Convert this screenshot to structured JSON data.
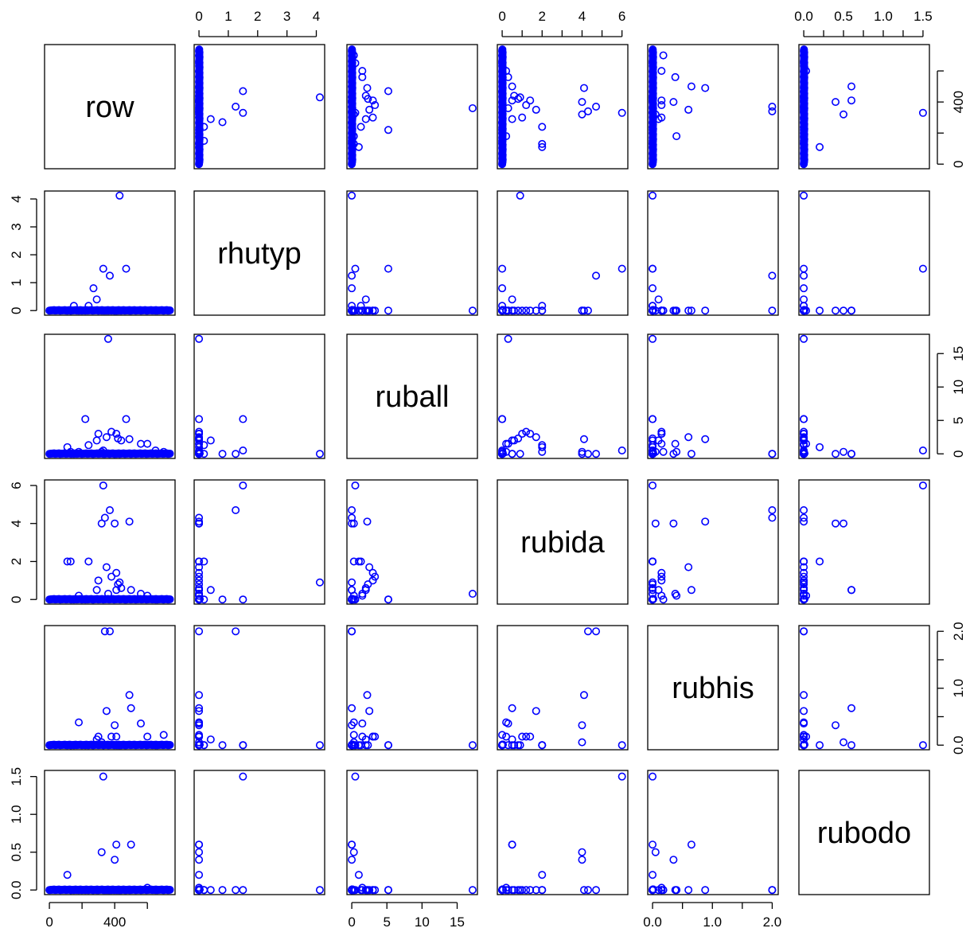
{
  "chart_data": {
    "type": "scatter",
    "layout": "pairs-matrix",
    "variables": [
      "row",
      "rhutyp",
      "ruball",
      "rubida",
      "rubhis",
      "rubodo"
    ],
    "ranges": {
      "row": [
        0,
        740
      ],
      "rhutyp": [
        0,
        4.12
      ],
      "ruball": [
        0,
        17.2
      ],
      "rubida": [
        0,
        6.05
      ],
      "rubhis": [
        0,
        2.02
      ],
      "rubodo": [
        0,
        1.52
      ]
    },
    "axis_ticks": {
      "top": {
        "rhutyp": [
          {
            "v": 0,
            "label": "0"
          },
          {
            "v": 1,
            "label": "1"
          },
          {
            "v": 2,
            "label": "2"
          },
          {
            "v": 3,
            "label": "3"
          },
          {
            "v": 4,
            "label": "4"
          }
        ],
        "rubida": [
          {
            "v": 0,
            "label": "0"
          },
          {
            "v": 1,
            "label": ""
          },
          {
            "v": 2,
            "label": "2"
          },
          {
            "v": 3,
            "label": ""
          },
          {
            "v": 4,
            "label": "4"
          },
          {
            "v": 5,
            "label": ""
          },
          {
            "v": 6,
            "label": "6"
          }
        ],
        "rubodo": [
          {
            "v": 0,
            "label": "0.0"
          },
          {
            "v": 0.25,
            "label": ""
          },
          {
            "v": 0.5,
            "label": "0.5"
          },
          {
            "v": 0.75,
            "label": ""
          },
          {
            "v": 1.0,
            "label": "1.0"
          },
          {
            "v": 1.25,
            "label": ""
          },
          {
            "v": 1.5,
            "label": "1.5"
          }
        ]
      },
      "bottom": {
        "row": [
          {
            "v": 0,
            "label": "0"
          },
          {
            "v": 200,
            "label": ""
          },
          {
            "v": 400,
            "label": "400"
          },
          {
            "v": 600,
            "label": ""
          }
        ],
        "ruball": [
          {
            "v": 0,
            "label": "0"
          },
          {
            "v": 5,
            "label": "5"
          },
          {
            "v": 10,
            "label": "10"
          },
          {
            "v": 15,
            "label": "15"
          }
        ],
        "rubhis": [
          {
            "v": 0,
            "label": "0.0"
          },
          {
            "v": 0.5,
            "label": ""
          },
          {
            "v": 1.0,
            "label": "1.0"
          },
          {
            "v": 1.5,
            "label": ""
          },
          {
            "v": 2.0,
            "label": "2.0"
          }
        ]
      },
      "left": {
        "rhutyp": [
          {
            "v": 0,
            "label": "0"
          },
          {
            "v": 1,
            "label": "1"
          },
          {
            "v": 2,
            "label": "2"
          },
          {
            "v": 3,
            "label": "3"
          },
          {
            "v": 4,
            "label": "4"
          }
        ],
        "rubida": [
          {
            "v": 0,
            "label": "0"
          },
          {
            "v": 2,
            "label": "2"
          },
          {
            "v": 4,
            "label": "4"
          },
          {
            "v": 6,
            "label": "6"
          }
        ],
        "rubodo": [
          {
            "v": 0,
            "label": "0.0"
          },
          {
            "v": 0.5,
            "label": "0.5"
          },
          {
            "v": 1.0,
            "label": "1.0"
          },
          {
            "v": 1.5,
            "label": "1.5"
          }
        ]
      },
      "right": {
        "row": [
          {
            "v": 0,
            "label": "0"
          },
          {
            "v": 200,
            "label": ""
          },
          {
            "v": 400,
            "label": "400"
          },
          {
            "v": 600,
            "label": ""
          }
        ],
        "ruball": [
          {
            "v": 0,
            "label": "0"
          },
          {
            "v": 5,
            "label": "5"
          },
          {
            "v": 10,
            "label": "10"
          },
          {
            "v": 15,
            "label": "15"
          }
        ],
        "rubhis": [
          {
            "v": 0,
            "label": "0.0"
          },
          {
            "v": 0.5,
            "label": ""
          },
          {
            "v": 1.0,
            "label": "1.0"
          },
          {
            "v": 1.5,
            "label": ""
          },
          {
            "v": 2.0,
            "label": "2.0"
          }
        ]
      }
    },
    "marker": "open-circle",
    "point_color": "#0000ff",
    "grid": false,
    "legend": "none",
    "baseline_rows": [
      [
        0,
        738
      ]
    ],
    "observations": [
      {
        "row": 240,
        "rhutyp": 0.17,
        "ruball": 1.3,
        "rubida": 2.0,
        "rubhis": 0.0,
        "rubodo": 0.0
      },
      {
        "row": 300,
        "rhutyp": 0.0,
        "ruball": 3.0,
        "rubida": 1.0,
        "rubhis": 0.15,
        "rubodo": 0.0
      },
      {
        "row": 320,
        "rhutyp": 0.0,
        "ruball": 0.3,
        "rubida": 4.0,
        "rubhis": 0.05,
        "rubodo": 0.5
      },
      {
        "row": 330,
        "rhutyp": 1.5,
        "ruball": 0.5,
        "rubida": 6.0,
        "rubhis": 0.0,
        "rubodo": 1.5
      },
      {
        "row": 340,
        "rhutyp": 0.0,
        "ruball": 0.0,
        "rubida": 4.3,
        "rubhis": 2.0,
        "rubodo": 0.0
      },
      {
        "row": 360,
        "rhutyp": 0.0,
        "ruball": 17.2,
        "rubida": 0.3,
        "rubhis": 0.0,
        "rubodo": 0.0
      },
      {
        "row": 370,
        "rhutyp": 1.25,
        "ruball": 0.0,
        "rubida": 4.7,
        "rubhis": 2.0,
        "rubodo": 0.0
      },
      {
        "row": 400,
        "rhutyp": 0.0,
        "ruball": 0.0,
        "rubida": 4.0,
        "rubhis": 0.35,
        "rubodo": 0.4
      },
      {
        "row": 410,
        "rhutyp": 0.0,
        "ruball": 0.0,
        "rubida": 0.5,
        "rubhis": 0.0,
        "rubodo": 0.6
      },
      {
        "row": 430,
        "rhutyp": 4.12,
        "ruball": 0.0,
        "rubida": 0.9,
        "rubhis": 0.0,
        "rubodo": 0.0
      },
      {
        "row": 470,
        "rhutyp": 1.5,
        "ruball": 5.2,
        "rubida": 0.0,
        "rubhis": 0.0,
        "rubodo": 0.0
      },
      {
        "row": 490,
        "rhutyp": 0.0,
        "ruball": 2.2,
        "rubida": 4.1,
        "rubhis": 0.88,
        "rubodo": 0.0
      },
      {
        "row": 500,
        "rhutyp": 0.0,
        "ruball": 0.0,
        "rubida": 0.5,
        "rubhis": 0.65,
        "rubodo": 0.6
      },
      {
        "row": 220,
        "rhutyp": 0.0,
        "ruball": 5.2,
        "rubida": 0.0,
        "rubhis": 0.0,
        "rubodo": 0.0
      },
      {
        "row": 110,
        "rhutyp": 0.0,
        "ruball": 1.0,
        "rubida": 2.0,
        "rubhis": 0.0,
        "rubodo": 0.2
      },
      {
        "row": 130,
        "rhutyp": 0.0,
        "ruball": 0.3,
        "rubida": 2.0,
        "rubhis": 0.0,
        "rubodo": 0.0
      },
      {
        "row": 180,
        "rhutyp": 0.0,
        "ruball": 0.3,
        "rubida": 0.2,
        "rubhis": 0.4,
        "rubodo": 0.0
      },
      {
        "row": 270,
        "rhutyp": 0.8,
        "ruball": 0.0,
        "rubida": 0.0,
        "rubhis": 0.0,
        "rubodo": 0.0
      },
      {
        "row": 290,
        "rhutyp": 0.4,
        "ruball": 2.0,
        "rubida": 0.5,
        "rubhis": 0.1,
        "rubodo": 0.0
      },
      {
        "row": 350,
        "rhutyp": 0.0,
        "ruball": 2.5,
        "rubida": 1.7,
        "rubhis": 0.6,
        "rubodo": 0.0
      },
      {
        "row": 380,
        "rhutyp": 0.0,
        "ruball": 3.3,
        "rubida": 1.2,
        "rubhis": 0.15,
        "rubodo": 0.0
      },
      {
        "row": 410,
        "rhutyp": 0.0,
        "ruball": 3.0,
        "rubida": 1.4,
        "rubhis": 0.15,
        "rubodo": 0.0
      },
      {
        "row": 420,
        "rhutyp": 0.0,
        "ruball": 2.3,
        "rubida": 0.8,
        "rubhis": 0.0,
        "rubodo": 0.0
      },
      {
        "row": 440,
        "rhutyp": 0.0,
        "ruball": 2.0,
        "rubida": 0.6,
        "rubhis": 0.0,
        "rubodo": 0.0
      },
      {
        "row": 150,
        "rhutyp": 0.17,
        "ruball": 0.0,
        "rubida": 0.0,
        "rubhis": 0.0,
        "rubodo": 0.0
      },
      {
        "row": 560,
        "rhutyp": 0.0,
        "ruball": 1.5,
        "rubida": 0.3,
        "rubhis": 0.38,
        "rubodo": 0.0
      },
      {
        "row": 600,
        "rhutyp": 0.0,
        "ruball": 1.5,
        "rubida": 0.2,
        "rubhis": 0.15,
        "rubodo": 0.03
      },
      {
        "row": 650,
        "rhutyp": 0.0,
        "ruball": 0.5,
        "rubida": 0.0,
        "rubhis": 0.0,
        "rubodo": 0.0
      },
      {
        "row": 700,
        "rhutyp": 0.0,
        "ruball": 0.3,
        "rubida": 0.0,
        "rubhis": 0.18,
        "rubodo": 0.0
      }
    ],
    "labels": [
      "row",
      "rhutyp",
      "ruball",
      "rubida",
      "rubhis",
      "rubodo"
    ]
  }
}
